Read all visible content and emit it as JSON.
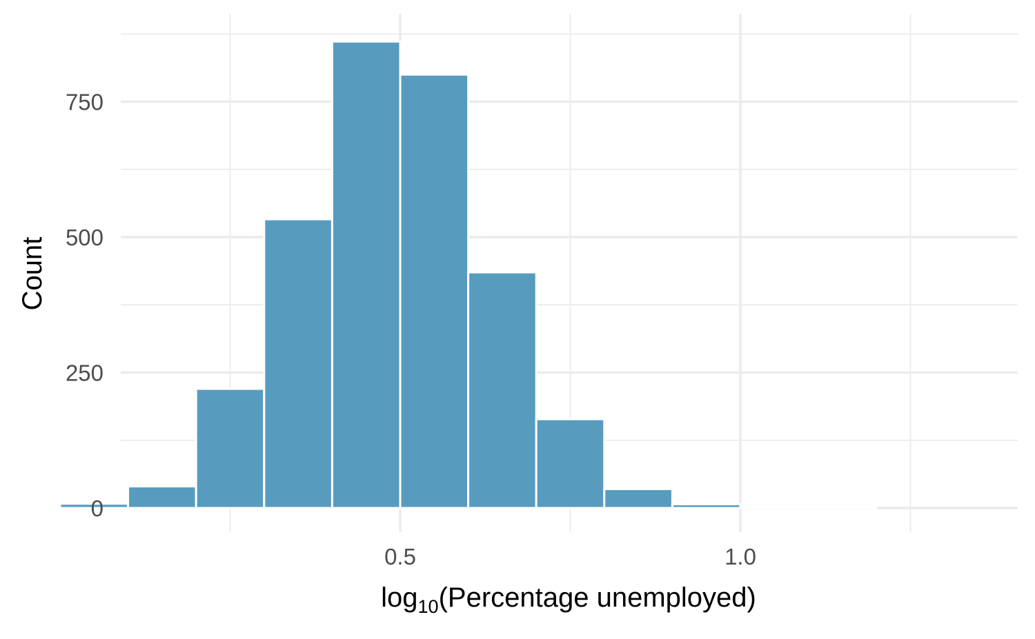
{
  "colors": {
    "bar_fill": "#579cbf",
    "grid": "#ebebeb",
    "background": "#ffffff",
    "tick_text": "#4d4d4d",
    "title_text": "#000000"
  },
  "chart_data": {
    "type": "bar",
    "subtype": "histogram",
    "xlabel_main": "log",
    "xlabel_sub": "10",
    "xlabel_rest": "(Percentage unemployed)",
    "ylabel": "Count",
    "xlim": [
      0.0,
      1.45
    ],
    "ylim": [
      0,
      875
    ],
    "x_major_ticks": [
      0.5,
      1.0
    ],
    "x_major_tick_labels": [
      "0.5",
      "1.0"
    ],
    "x_minor_gridlines": [
      0.25,
      0.75,
      1.25
    ],
    "y_major_ticks": [
      0,
      250,
      500,
      750
    ],
    "y_major_tick_labels": [
      "0",
      "250",
      "500",
      "750"
    ],
    "y_minor_gridlines": [
      125,
      375,
      625,
      875
    ],
    "bins": [
      {
        "start": 0.0,
        "end": 0.1,
        "count": 8
      },
      {
        "start": 0.1,
        "end": 0.2,
        "count": 40
      },
      {
        "start": 0.2,
        "end": 0.3,
        "count": 220
      },
      {
        "start": 0.3,
        "end": 0.4,
        "count": 533
      },
      {
        "start": 0.4,
        "end": 0.5,
        "count": 861
      },
      {
        "start": 0.5,
        "end": 0.6,
        "count": 800
      },
      {
        "start": 0.6,
        "end": 0.7,
        "count": 435
      },
      {
        "start": 0.7,
        "end": 0.8,
        "count": 164
      },
      {
        "start": 0.8,
        "end": 0.9,
        "count": 35
      },
      {
        "start": 0.9,
        "end": 1.0,
        "count": 7
      },
      {
        "start": 1.0,
        "end": 1.1,
        "count": 1
      },
      {
        "start": 1.1,
        "end": 1.2,
        "count": 1
      }
    ],
    "grid": true,
    "legend": "none"
  }
}
